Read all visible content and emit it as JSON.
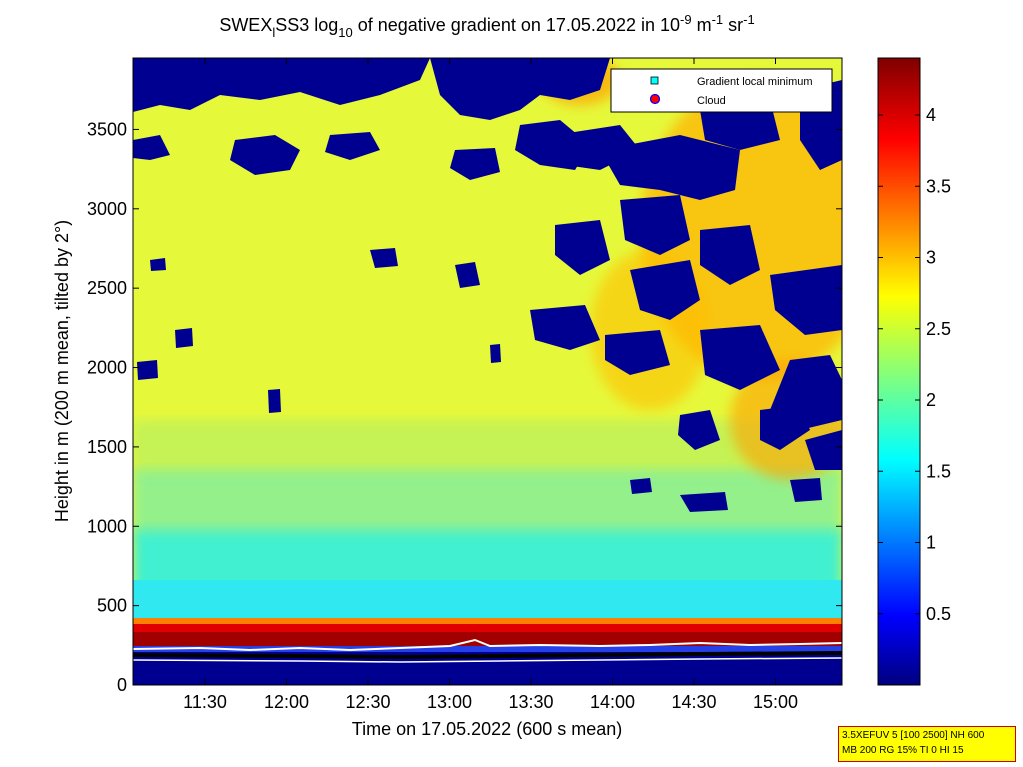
{
  "chart_data": {
    "type": "heatmap",
    "title": {
      "prefix": "SWEX",
      "prefix_sub": "l",
      "middle": "SS3 log",
      "middle_sub": "10",
      "after_sub": " of negative gradient on 17.05.2022 in 10",
      "exp1": "-9",
      "unit_m": " m",
      "exp2": "-1",
      "unit_sr": " sr",
      "exp3": "-1"
    },
    "xlabel": "Time on 17.05.2022 (600 s mean)",
    "ylabel": "Height in m (200 m mean, tilted by 2°)",
    "x_ticks": [
      "11:30",
      "12:00",
      "12:30",
      "13:00",
      "13:30",
      "14:00",
      "14:30",
      "15:00"
    ],
    "y_ticks": [
      0,
      500,
      1000,
      1500,
      2000,
      2500,
      3000,
      3500
    ],
    "ylim": [
      0,
      3950
    ],
    "colorbar": {
      "ticks": [
        "0.5",
        "1",
        "1.5",
        "2",
        "2.5",
        "3",
        "3.5",
        "4"
      ],
      "range": [
        0,
        4.4
      ],
      "colormap": "jet"
    },
    "legend": {
      "placement": "top-right",
      "entries": [
        {
          "name": "Gradient local minimum",
          "marker": "square",
          "color": "#00ffff"
        },
        {
          "name": "Cloud",
          "marker": "circle",
          "color": "#ff0000"
        }
      ]
    }
  },
  "info": {
    "line1": "3.5XEFUV 5 [100 2500] NH 600",
    "line2": "MB 200 RG 15% TI 0 HI 15"
  }
}
